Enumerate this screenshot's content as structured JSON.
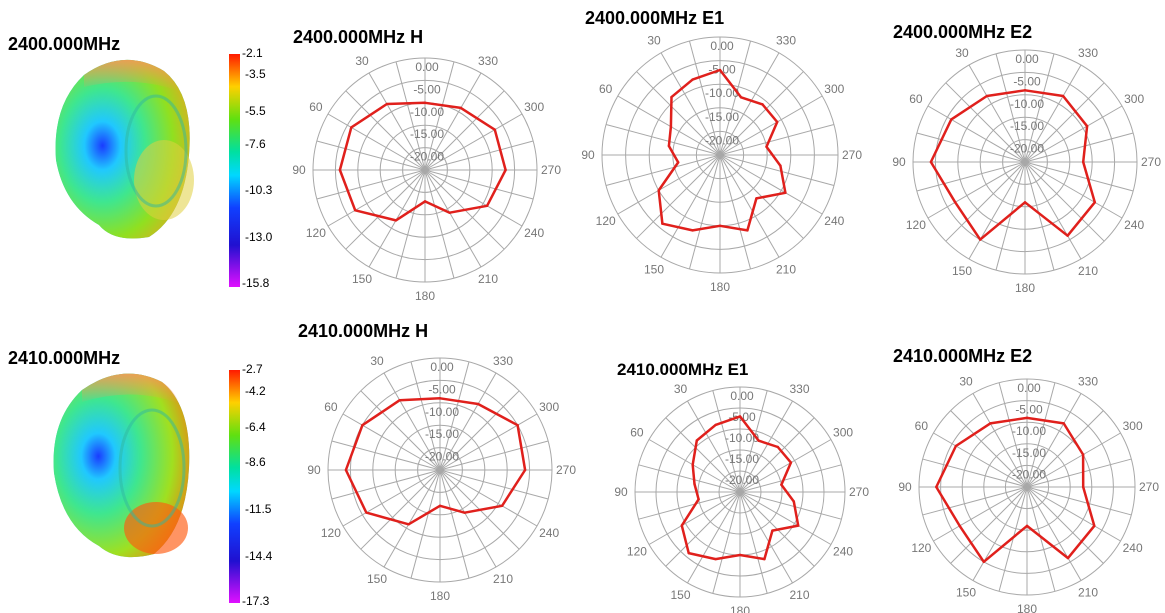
{
  "rows": [
    {
      "freq_label": "2400.000MHz",
      "colorbar": {
        "ticks": [
          "-2.1",
          "-3.5",
          "-5.5",
          "-7.6",
          "-10.3",
          "-13.0",
          "-15.8"
        ]
      },
      "titles": [
        "2400.000MHz  H",
        "2400.000MHz  E1",
        "2400.000MHz  E2"
      ]
    },
    {
      "freq_label": "2410.000MHz",
      "colorbar": {
        "ticks": [
          "-2.7",
          "-4.2",
          "-6.4",
          "-8.6",
          "-11.5",
          "-14.4",
          "-17.3"
        ]
      },
      "titles": [
        "2410.000MHz  H",
        "2410.000MHz  E1",
        "2410.000MHz  E2"
      ]
    }
  ],
  "colors": {
    "trace": "#e0201c",
    "grid": "#a8a8a8",
    "label": "#777777",
    "colormap": [
      "#ff1a00",
      "#ffd000",
      "#60e010",
      "#00e0a0",
      "#00d8ff",
      "#1040ff",
      "#2010d0",
      "#e010ff"
    ]
  },
  "chart_data": [
    {
      "type": "polar",
      "title": "2400.000MHz  H",
      "radial_ticks": [
        "0.00",
        "-5.00",
        "-10.00",
        "-15.00",
        "-20.00"
      ],
      "angle_ticks": [
        "0",
        "30",
        "60",
        "90",
        "120",
        "150",
        "180",
        "210",
        "240",
        "270",
        "300",
        "330"
      ],
      "angles": [
        0,
        30,
        60,
        90,
        120,
        150,
        180,
        210,
        240,
        270,
        300,
        330
      ],
      "values": [
        -10,
        -8,
        -6,
        -6,
        -7,
        -12,
        -18,
        -14,
        -9,
        -7,
        -7,
        -9
      ]
    },
    {
      "type": "polar",
      "title": "2400.000MHz  E1",
      "radial_ticks": [
        "0.00",
        "-5.00",
        "-10.00",
        "-15.00",
        "-20.00"
      ],
      "angle_ticks": [
        "0",
        "30",
        "60",
        "90",
        "120",
        "150",
        "180",
        "210",
        "240",
        "270",
        "300",
        "330"
      ],
      "angles": [
        0,
        20,
        40,
        60,
        80,
        100,
        120,
        140,
        160,
        180,
        200,
        220,
        240,
        260,
        280,
        300,
        320,
        340
      ],
      "values": [
        -7,
        -8,
        -9,
        -13,
        -14,
        -16,
        -10,
        -6,
        -8,
        -10,
        -8,
        -13,
        -9,
        -12,
        -15,
        -11,
        -11,
        -12
      ]
    },
    {
      "type": "polar",
      "title": "2400.000MHz  E2",
      "radial_ticks": [
        "0.00",
        "-5.00",
        "-10.00",
        "-15.00",
        "-20.00"
      ],
      "angle_ticks": [
        "0",
        "30",
        "60",
        "90",
        "120",
        "150",
        "180",
        "210",
        "240",
        "270",
        "300",
        "330"
      ],
      "angles": [
        0,
        30,
        60,
        90,
        120,
        150,
        180,
        210,
        240,
        270,
        300,
        330
      ],
      "values": [
        -9,
        -8,
        -6,
        -4,
        -7,
        -5,
        -16,
        -6,
        -7,
        -12,
        -9,
        -8
      ]
    },
    {
      "type": "polar",
      "title": "2410.000MHz  H",
      "radial_ticks": [
        "0.00",
        "-5.00",
        "-10.00",
        "-15.00",
        "-20.00"
      ],
      "angle_ticks": [
        "0",
        "30",
        "60",
        "90",
        "120",
        "150",
        "180",
        "210",
        "240",
        "270",
        "300",
        "330"
      ],
      "angles": [
        0,
        30,
        60,
        90,
        120,
        150,
        180,
        210,
        240,
        270,
        300,
        330
      ],
      "values": [
        -9,
        -7,
        -5,
        -4,
        -6,
        -11,
        -17,
        -14,
        -9,
        -6,
        -5,
        -8
      ]
    },
    {
      "type": "polar",
      "title": "2410.000MHz  E1",
      "radial_ticks": [
        "0.00",
        "-5.00",
        "-10.00",
        "-15.00",
        "-20.00"
      ],
      "angle_ticks": [
        "0",
        "30",
        "60",
        "90",
        "120",
        "150",
        "180",
        "210",
        "240",
        "270",
        "300",
        "330"
      ],
      "angles": [
        0,
        20,
        40,
        60,
        80,
        100,
        120,
        140,
        160,
        180,
        200,
        220,
        240,
        260,
        280,
        300,
        320,
        340
      ],
      "values": [
        -7,
        -8,
        -9,
        -12,
        -14,
        -15,
        -9,
        -6,
        -8,
        -10,
        -8,
        -13,
        -9,
        -12,
        -15,
        -11,
        -11,
        -12
      ]
    },
    {
      "type": "polar",
      "title": "2410.000MHz  E2",
      "radial_ticks": [
        "0.00",
        "-5.00",
        "-10.00",
        "-15.00",
        "-20.00"
      ],
      "angle_ticks": [
        "0",
        "30",
        "60",
        "90",
        "120",
        "150",
        "180",
        "210",
        "240",
        "270",
        "300",
        "330"
      ],
      "angles": [
        0,
        30,
        60,
        90,
        120,
        150,
        180,
        210,
        240,
        270,
        300,
        330
      ],
      "values": [
        -9,
        -8,
        -6,
        -4,
        -7,
        -5,
        -16,
        -6,
        -7,
        -12,
        -10,
        -8
      ]
    }
  ]
}
